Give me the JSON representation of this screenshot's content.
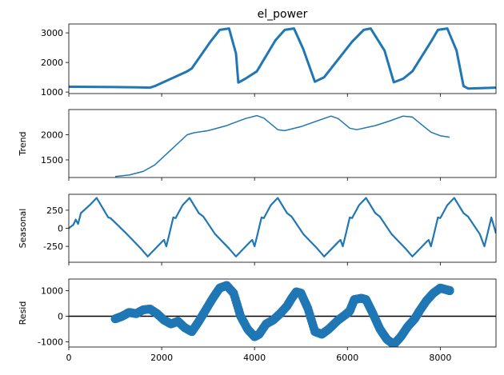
{
  "figure": {
    "title": "el_power",
    "line_color": "#1f77b4",
    "xlim": [
      0,
      9200
    ],
    "x_ticks": [
      0,
      2000,
      4000,
      6000,
      8000
    ]
  },
  "chart_data": [
    {
      "type": "line",
      "name": "observed",
      "title": "el_power",
      "ylabel": "",
      "ylim": [
        950,
        3300
      ],
      "y_ticks": [
        1000,
        2000,
        3000
      ],
      "x_tick_labels_visible": false,
      "series": [
        {
          "values_xy": [
            [
              0,
              1180
            ],
            [
              1000,
              1170
            ],
            [
              1500,
              1160
            ],
            [
              1750,
              1150
            ],
            [
              1850,
              1200
            ],
            [
              2200,
              1450
            ],
            [
              2550,
              1700
            ],
            [
              2650,
              1800
            ],
            [
              3050,
              2700
            ],
            [
              3250,
              3100
            ],
            [
              3450,
              3150
            ],
            [
              3600,
              2300
            ],
            [
              3650,
              1320
            ],
            [
              3800,
              1450
            ],
            [
              4050,
              1700
            ],
            [
              4450,
              2750
            ],
            [
              4650,
              3100
            ],
            [
              4850,
              3150
            ],
            [
              5050,
              2450
            ],
            [
              5300,
              1350
            ],
            [
              5500,
              1500
            ],
            [
              5600,
              1700
            ],
            [
              6100,
              2700
            ],
            [
              6350,
              3100
            ],
            [
              6500,
              3150
            ],
            [
              6800,
              2400
            ],
            [
              7000,
              1330
            ],
            [
              7200,
              1450
            ],
            [
              7400,
              1700
            ],
            [
              7800,
              2700
            ],
            [
              7950,
              3100
            ],
            [
              8150,
              3150
            ],
            [
              8350,
              2400
            ],
            [
              8500,
              1200
            ],
            [
              8600,
              1120
            ],
            [
              9200,
              1150
            ]
          ]
        }
      ]
    },
    {
      "type": "line",
      "name": "trend",
      "ylabel": "Trend",
      "ylim": [
        1150,
        2500
      ],
      "y_ticks": [
        1500,
        2000
      ],
      "x_tick_labels_visible": false,
      "series": [
        {
          "values_xy": [
            [
              1000,
              1170
            ],
            [
              1300,
              1200
            ],
            [
              1600,
              1270
            ],
            [
              1850,
              1400
            ],
            [
              2200,
              1700
            ],
            [
              2550,
              2000
            ],
            [
              2700,
              2040
            ],
            [
              3000,
              2080
            ],
            [
              3400,
              2180
            ],
            [
              3800,
              2320
            ],
            [
              4050,
              2380
            ],
            [
              4200,
              2330
            ],
            [
              4500,
              2100
            ],
            [
              4650,
              2080
            ],
            [
              5000,
              2160
            ],
            [
              5400,
              2290
            ],
            [
              5650,
              2370
            ],
            [
              5800,
              2320
            ],
            [
              6050,
              2130
            ],
            [
              6200,
              2100
            ],
            [
              6600,
              2180
            ],
            [
              6900,
              2270
            ],
            [
              7200,
              2370
            ],
            [
              7400,
              2350
            ],
            [
              7600,
              2200
            ],
            [
              7800,
              2050
            ],
            [
              8000,
              1980
            ],
            [
              8200,
              1950
            ]
          ]
        }
      ]
    },
    {
      "type": "line",
      "name": "seasonal",
      "ylabel": "Seasonal",
      "ylim": [
        -470,
        470
      ],
      "y_ticks": [
        -250,
        0,
        250
      ],
      "x_tick_labels_visible": false,
      "series": [
        {
          "values_xy": [
            [
              0,
              0
            ],
            [
              100,
              50
            ],
            [
              150,
              120
            ],
            [
              200,
              60
            ],
            [
              260,
              210
            ],
            [
              450,
              320
            ],
            [
              600,
              420
            ],
            [
              850,
              150
            ],
            [
              900,
              140
            ],
            [
              1250,
              -80
            ],
            [
              1550,
              -280
            ],
            [
              1700,
              -390
            ],
            [
              2000,
              -190
            ],
            [
              2050,
              -160
            ],
            [
              2100,
              -250
            ],
            [
              2150,
              -120
            ],
            [
              2250,
              150
            ],
            [
              2300,
              140
            ],
            [
              2350,
              200
            ],
            [
              2450,
              320
            ],
            [
              2600,
              420
            ],
            [
              2800,
              210
            ],
            [
              2900,
              160
            ],
            [
              3150,
              -80
            ],
            [
              3450,
              -280
            ],
            [
              3600,
              -390
            ],
            [
              3900,
              -190
            ],
            [
              3950,
              -160
            ],
            [
              4000,
              -250
            ],
            [
              4050,
              -120
            ],
            [
              4150,
              150
            ],
            [
              4200,
              140
            ],
            [
              4250,
              200
            ],
            [
              4350,
              320
            ],
            [
              4500,
              420
            ],
            [
              4700,
              210
            ],
            [
              4800,
              160
            ],
            [
              5050,
              -80
            ],
            [
              5350,
              -280
            ],
            [
              5500,
              -390
            ],
            [
              5800,
              -190
            ],
            [
              5850,
              -160
            ],
            [
              5900,
              -250
            ],
            [
              5950,
              -120
            ],
            [
              6050,
              150
            ],
            [
              6100,
              140
            ],
            [
              6150,
              200
            ],
            [
              6250,
              320
            ],
            [
              6400,
              420
            ],
            [
              6600,
              210
            ],
            [
              6700,
              160
            ],
            [
              6950,
              -80
            ],
            [
              7250,
              -280
            ],
            [
              7400,
              -390
            ],
            [
              7700,
              -190
            ],
            [
              7750,
              -160
            ],
            [
              7800,
              -250
            ],
            [
              7850,
              -120
            ],
            [
              7950,
              150
            ],
            [
              8000,
              140
            ],
            [
              8050,
              200
            ],
            [
              8150,
              320
            ],
            [
              8300,
              420
            ],
            [
              8500,
              210
            ],
            [
              8600,
              160
            ],
            [
              8850,
              -80
            ],
            [
              8950,
              -250
            ],
            [
              9000,
              -120
            ],
            [
              9100,
              150
            ],
            [
              9200,
              -70
            ]
          ]
        }
      ]
    },
    {
      "type": "scatter",
      "name": "resid",
      "ylabel": "Resid",
      "ylim": [
        -1200,
        1450
      ],
      "y_ticks": [
        -1000,
        0,
        1000
      ],
      "x_tick_labels": [
        "0",
        "2000",
        "4000",
        "6000",
        "8000"
      ],
      "baseline": 0,
      "series": [
        {
          "values_xy": [
            [
              1000,
              -100
            ],
            [
              1150,
              0
            ],
            [
              1300,
              150
            ],
            [
              1450,
              100
            ],
            [
              1600,
              250
            ],
            [
              1750,
              280
            ],
            [
              1900,
              100
            ],
            [
              2050,
              -150
            ],
            [
              2200,
              -300
            ],
            [
              2350,
              -200
            ],
            [
              2500,
              -450
            ],
            [
              2650,
              -600
            ],
            [
              2800,
              -200
            ],
            [
              2950,
              250
            ],
            [
              3100,
              700
            ],
            [
              3250,
              1100
            ],
            [
              3400,
              1200
            ],
            [
              3550,
              900
            ],
            [
              3700,
              0
            ],
            [
              3850,
              -500
            ],
            [
              4000,
              -800
            ],
            [
              4100,
              -700
            ],
            [
              4250,
              -300
            ],
            [
              4400,
              -150
            ],
            [
              4550,
              100
            ],
            [
              4700,
              400
            ],
            [
              4800,
              700
            ],
            [
              4900,
              950
            ],
            [
              5000,
              900
            ],
            [
              5150,
              300
            ],
            [
              5300,
              -600
            ],
            [
              5450,
              -700
            ],
            [
              5600,
              -500
            ],
            [
              5800,
              -150
            ],
            [
              5950,
              50
            ],
            [
              6050,
              200
            ],
            [
              6150,
              650
            ],
            [
              6300,
              700
            ],
            [
              6400,
              650
            ],
            [
              6550,
              100
            ],
            [
              6700,
              -500
            ],
            [
              6850,
              -900
            ],
            [
              7000,
              -1100
            ],
            [
              7150,
              -800
            ],
            [
              7300,
              -400
            ],
            [
              7450,
              -100
            ],
            [
              7550,
              200
            ],
            [
              7700,
              600
            ],
            [
              7850,
              900
            ],
            [
              8000,
              1100
            ],
            [
              8100,
              1050
            ],
            [
              8200,
              1000
            ]
          ]
        }
      ]
    }
  ]
}
